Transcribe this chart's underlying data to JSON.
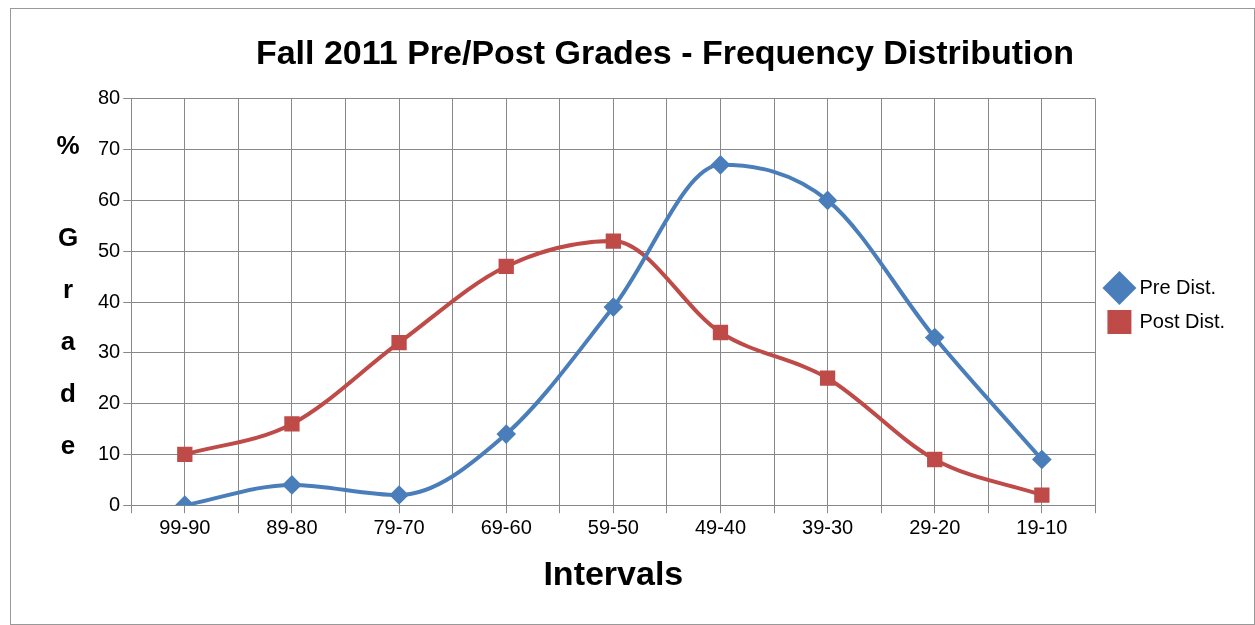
{
  "chart_data": {
    "type": "line",
    "title": "Fall 2011 Pre/Post Grades - Frequency Distribution",
    "xlabel": "Intervals",
    "ylabel": "% Grade",
    "categories": [
      "99-90",
      "89-80",
      "79-70",
      "69-60",
      "59-50",
      "49-40",
      "39-30",
      "29-20",
      "19-10"
    ],
    "series": [
      {
        "name": "Pre Dist.",
        "color": "#4a7ebb",
        "marker": "diamond",
        "values": [
          0,
          4,
          2,
          14,
          39,
          67,
          60,
          33,
          9
        ]
      },
      {
        "name": "Post Dist.",
        "color": "#be4b48",
        "marker": "square",
        "values": [
          10,
          16,
          32,
          47,
          52,
          34,
          25,
          9,
          2
        ]
      }
    ],
    "ylim": [
      0,
      80
    ],
    "yticks": [
      0,
      10,
      20,
      30,
      40,
      50,
      60,
      70,
      80
    ],
    "grid": true,
    "legend": "right",
    "line_style": "solid"
  }
}
